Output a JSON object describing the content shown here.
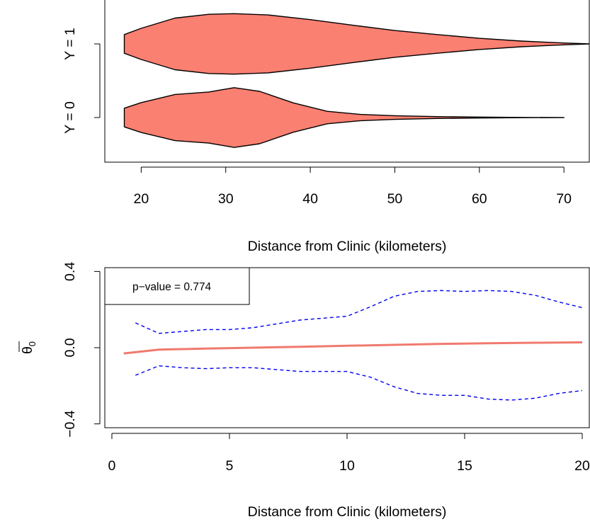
{
  "chart_data": [
    {
      "type": "violin",
      "xlabel": "Distance from Clinic (kilometers)",
      "x_ticks": [
        20,
        30,
        40,
        50,
        60,
        70
      ],
      "xlim": [
        15.7,
        73
      ],
      "categories": [
        "Y = 0",
        "Y = 1"
      ],
      "fill_color": "#FA8072",
      "violins": [
        {
          "label": "Y = 1",
          "min": 18,
          "max": 73,
          "profile": [
            [
              18,
              0.3
            ],
            [
              20,
              0.5
            ],
            [
              24,
              0.83
            ],
            [
              28,
              0.95
            ],
            [
              31,
              0.97
            ],
            [
              35,
              0.93
            ],
            [
              40,
              0.78
            ],
            [
              45,
              0.6
            ],
            [
              50,
              0.43
            ],
            [
              55,
              0.3
            ],
            [
              60,
              0.18
            ],
            [
              65,
              0.09
            ],
            [
              70,
              0.03
            ],
            [
              73,
              0
            ]
          ]
        },
        {
          "label": "Y = 0",
          "min": 18,
          "max": 70,
          "profile": [
            [
              18,
              0.3
            ],
            [
              20,
              0.48
            ],
            [
              24,
              0.74
            ],
            [
              28,
              0.82
            ],
            [
              31,
              0.96
            ],
            [
              34,
              0.84
            ],
            [
              38,
              0.47
            ],
            [
              42,
              0.2
            ],
            [
              46,
              0.1
            ],
            [
              50,
              0.06
            ],
            [
              55,
              0.03
            ],
            [
              60,
              0.015
            ],
            [
              65,
              0.005
            ],
            [
              70,
              0
            ]
          ]
        }
      ]
    },
    {
      "type": "line",
      "xlabel": "Distance from Clinic (kilometers)",
      "ylabel": "θ̄0",
      "ylabel_base": "θ",
      "ylabel_sub": "0",
      "xlim": [
        -0.3,
        20.3
      ],
      "ylim": [
        -0.42,
        0.42
      ],
      "x_ticks": [
        0,
        5,
        10,
        15,
        20
      ],
      "y_ticks": [
        {
          "value": -0.4,
          "label": "−0.4"
        },
        {
          "value": 0.0,
          "label": "0.0"
        },
        {
          "value": 0.4,
          "label": "0.4"
        }
      ],
      "legend_text": "p−value =  0.774",
      "legend_position": "top-left",
      "series": [
        {
          "style": "solid",
          "color": "#F07A6E",
          "x": [
            0.5,
            2,
            4,
            6,
            8,
            10,
            12,
            14,
            16,
            18,
            20
          ],
          "y": [
            -0.03,
            -0.01,
            -0.005,
            0.0,
            0.005,
            0.01,
            0.015,
            0.02,
            0.023,
            0.026,
            0.028
          ]
        },
        {
          "style": "dashed",
          "color": "#0000EE",
          "x": [
            1,
            2,
            3,
            4,
            5,
            6,
            7,
            8,
            9,
            10,
            11,
            12,
            13,
            14,
            15,
            16,
            17,
            18,
            19,
            20
          ],
          "y": [
            0.13,
            0.075,
            0.085,
            0.095,
            0.095,
            0.105,
            0.125,
            0.145,
            0.155,
            0.165,
            0.215,
            0.27,
            0.295,
            0.3,
            0.295,
            0.3,
            0.295,
            0.275,
            0.24,
            0.21
          ]
        },
        {
          "style": "dashed",
          "color": "#0000EE",
          "x": [
            1,
            2,
            3,
            4,
            5,
            6,
            7,
            8,
            9,
            10,
            11,
            12,
            13,
            14,
            15,
            16,
            17,
            18,
            19,
            20
          ],
          "y": [
            -0.145,
            -0.095,
            -0.105,
            -0.11,
            -0.105,
            -0.105,
            -0.115,
            -0.125,
            -0.125,
            -0.125,
            -0.155,
            -0.205,
            -0.24,
            -0.25,
            -0.25,
            -0.27,
            -0.275,
            -0.265,
            -0.24,
            -0.225
          ]
        }
      ]
    }
  ]
}
